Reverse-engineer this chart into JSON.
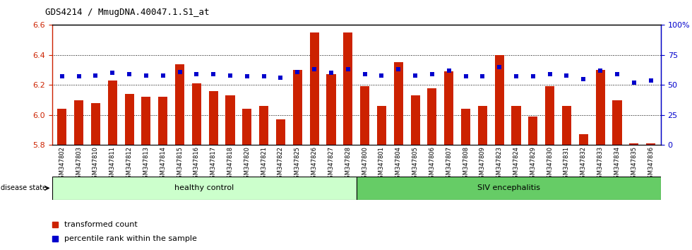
{
  "title": "GDS4214 / MmugDNA.40047.1.S1_at",
  "samples": [
    "GSM347802",
    "GSM347803",
    "GSM347810",
    "GSM347811",
    "GSM347812",
    "GSM347813",
    "GSM347814",
    "GSM347815",
    "GSM347816",
    "GSM347817",
    "GSM347818",
    "GSM347820",
    "GSM347821",
    "GSM347822",
    "GSM347825",
    "GSM347826",
    "GSM347827",
    "GSM347828",
    "GSM347800",
    "GSM347801",
    "GSM347804",
    "GSM347805",
    "GSM347806",
    "GSM347807",
    "GSM347808",
    "GSM347809",
    "GSM347823",
    "GSM347824",
    "GSM347829",
    "GSM347830",
    "GSM347831",
    "GSM347832",
    "GSM347833",
    "GSM347834",
    "GSM347835",
    "GSM347836"
  ],
  "bar_values": [
    6.04,
    6.1,
    6.08,
    6.23,
    6.14,
    6.12,
    6.12,
    6.34,
    6.21,
    6.16,
    6.13,
    6.04,
    6.06,
    5.97,
    6.3,
    6.55,
    6.27,
    6.55,
    6.19,
    6.06,
    6.35,
    6.13,
    6.18,
    6.29,
    6.04,
    6.06,
    6.4,
    6.06,
    5.99,
    6.19,
    6.06,
    5.87,
    6.3,
    6.1,
    5.81,
    5.81
  ],
  "percentile_values": [
    57,
    57,
    58,
    60,
    59,
    58,
    58,
    61,
    59,
    59,
    58,
    57,
    57,
    56,
    61,
    63,
    60,
    63,
    59,
    58,
    63,
    58,
    59,
    62,
    57,
    57,
    65,
    57,
    57,
    59,
    58,
    55,
    62,
    59,
    52,
    54
  ],
  "group_labels": [
    "healthy control",
    "SIV encephalitis"
  ],
  "group_split": 18,
  "bar_color": "#CC2200",
  "percentile_color": "#0000CC",
  "ylim_left": [
    5.8,
    6.6
  ],
  "ylim_right": [
    0,
    100
  ],
  "yticks_left": [
    5.8,
    6.0,
    6.2,
    6.4,
    6.6
  ],
  "yticks_right": [
    0,
    25,
    50,
    75,
    100
  ],
  "grid_lines": [
    6.0,
    6.2,
    6.4
  ],
  "bar_bottom": 5.8,
  "healthy_color": "#ccffcc",
  "siv_color": "#66cc66"
}
